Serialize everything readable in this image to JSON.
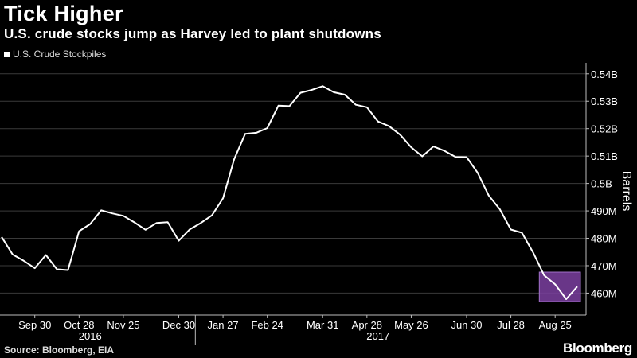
{
  "title": "Tick Higher",
  "subtitle": "U.S. crude stocks jump as Harvey led to plant shutdowns",
  "legend_label": "U.S. Crude Stockpiles",
  "source": "Source: Bloomberg, EIA",
  "brand": "Bloomberg",
  "colors": {
    "background": "#000000",
    "line": "#ffffff",
    "highlight": "#7b3fa0",
    "grid": "#3a3a3a"
  },
  "chart_data": {
    "type": "line",
    "ylabel": "Barrels",
    "ylim": [
      452,
      544
    ],
    "y_ticks": [
      {
        "value": 460,
        "label": "460M"
      },
      {
        "value": 470,
        "label": "470M"
      },
      {
        "value": 480,
        "label": "480M"
      },
      {
        "value": 490,
        "label": "490M"
      },
      {
        "value": 500,
        "label": "0.5B"
      },
      {
        "value": 510,
        "label": "0.51B"
      },
      {
        "value": 520,
        "label": "0.52B"
      },
      {
        "value": 530,
        "label": "0.53B"
      },
      {
        "value": 540,
        "label": "0.54B"
      }
    ],
    "x_ticks": [
      "Sep 30",
      "Oct 28",
      "Nov 25",
      "Dec 30",
      "Jan 27",
      "Feb 24",
      "Mar 31",
      "Apr 28",
      "May 26",
      "Jun 30",
      "Jul 28",
      "Aug 25"
    ],
    "x_tick_index": [
      3,
      7,
      11,
      16,
      20,
      24,
      29,
      33,
      37,
      42,
      46,
      50
    ],
    "years": [
      {
        "label": "2016",
        "index": 8
      },
      {
        "label": "2017",
        "index": 34
      }
    ],
    "year_divider_index": 17.5,
    "highlight_from_index": 49,
    "series": [
      {
        "values": [
          480.5,
          474.1,
          471.8,
          469.1,
          473.9,
          468.7,
          468.4,
          482.6,
          485.2,
          490.2,
          489.1,
          488.2,
          485.8,
          483.1,
          485.6,
          485.9,
          479.1,
          483.3,
          485.6,
          488.4,
          494.6,
          508.8,
          518.1,
          518.5,
          520.2,
          528.4,
          528.2,
          533.1,
          534.1,
          535.5,
          533.3,
          532.4,
          528.7,
          527.8,
          522.6,
          520.9,
          517.8,
          513.2,
          509.9,
          513.5,
          511.9,
          509.7,
          509.6,
          503.9,
          495.6,
          490.6,
          483.2,
          482.0,
          474.9,
          466.5,
          463.2,
          457.8,
          462.4
        ]
      }
    ]
  }
}
